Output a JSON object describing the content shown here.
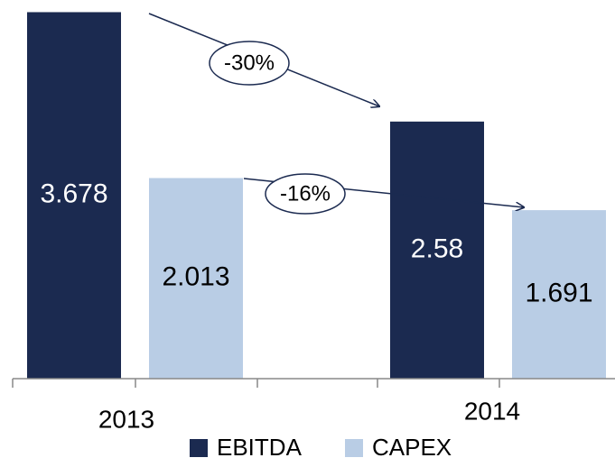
{
  "chart_data": {
    "type": "bar",
    "categories": [
      "2013",
      "2014"
    ],
    "series": [
      {
        "name": "EBITDA",
        "color": "#1b2a50",
        "values": [
          3.678,
          2.58
        ]
      },
      {
        "name": "CAPEX",
        "color": "#b9cde5",
        "values": [
          2.013,
          1.691
        ]
      }
    ],
    "annotations": [
      "-30%",
      "-16%"
    ],
    "ylim": [
      0,
      3.8
    ],
    "legend": "bottom"
  }
}
